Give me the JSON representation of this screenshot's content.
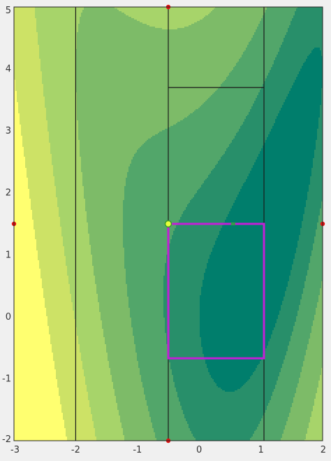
{
  "chart_data": {
    "type": "heatmap",
    "title": "",
    "xlabel": "",
    "ylabel": "",
    "xlim": [
      -3,
      2
    ],
    "ylim": [
      -2,
      5
    ],
    "xticks": [
      "-3",
      "-2",
      "-1",
      "0",
      "1",
      "2"
    ],
    "yticks": [
      "-2",
      "-1",
      "0",
      "1",
      "2",
      "3",
      "4",
      "5"
    ],
    "field": "Rosenbrock-like valley f = 0.35*(y - x^2)^2 + (1 - x)^2, centre of valley near x = 0",
    "contour_levels": [
      1,
      2.5,
      5,
      9,
      15,
      25
    ],
    "contour_colors": [
      "#007e6c",
      "#288f6a",
      "#52a66a",
      "#7dbb68",
      "#a7d46a",
      "#cde266",
      "#ffff70"
    ],
    "cell_lines": [
      {
        "x": [
          -2.0,
          -2.0
        ],
        "y": [
          -2.0,
          5.0
        ]
      },
      {
        "x": [
          -0.5,
          -0.5
        ],
        "y": [
          -2.0,
          5.0
        ]
      },
      {
        "x": [
          1.05,
          1.05
        ],
        "y": [
          -2.0,
          5.0
        ]
      },
      {
        "x": [
          -0.5,
          1.05
        ],
        "y": [
          3.7,
          3.7
        ]
      }
    ],
    "selection_box": {
      "x0": -0.5,
      "x1": 1.05,
      "y0": -0.67,
      "y1": 1.5,
      "color": "#c21fd6"
    },
    "current_point": {
      "x": -0.5,
      "y": 1.5,
      "color": "#e6ff3a"
    },
    "small_marker": {
      "x": 0.55,
      "y": 1.5
    },
    "boundary_points": [
      {
        "x": -0.5,
        "y": 5.0
      },
      {
        "x": -0.5,
        "y": -2.0
      },
      {
        "x": -3.0,
        "y": 1.5
      },
      {
        "x": 2.0,
        "y": 1.5
      }
    ],
    "boundary_point_color": "#e01010"
  }
}
